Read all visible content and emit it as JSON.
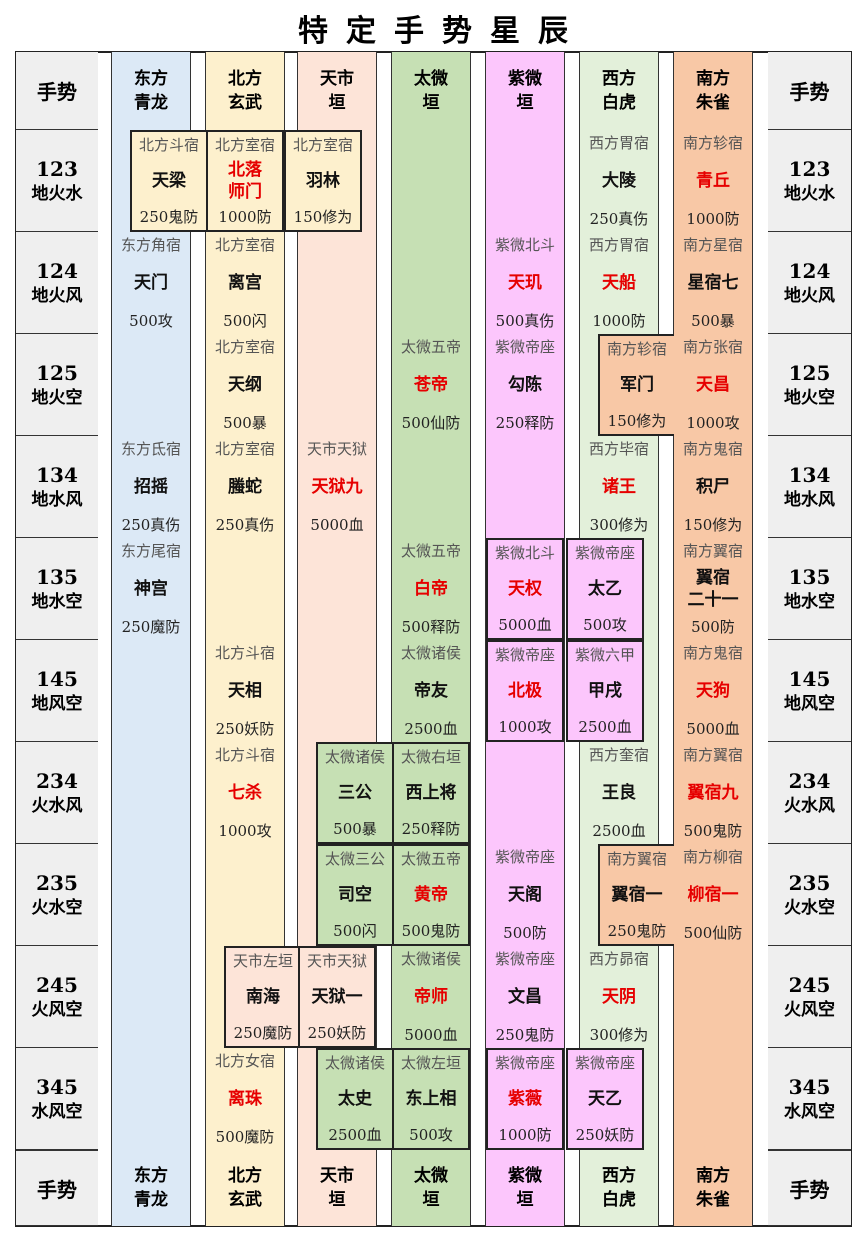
{
  "title": "特定手势星辰",
  "header": {
    "left": "手势",
    "right": "手势",
    "columns": [
      [
        "东方",
        "青龙"
      ],
      [
        "北方",
        "玄武"
      ],
      [
        "天市",
        "垣"
      ],
      [
        "太微",
        "垣"
      ],
      [
        "紫微",
        "垣"
      ],
      [
        "西方",
        "白虎"
      ],
      [
        "南方",
        "朱雀"
      ]
    ]
  },
  "footer": {
    "left": "手势",
    "right": "手势",
    "columns": [
      [
        "东方",
        "青龙"
      ],
      [
        "北方",
        "玄武"
      ],
      [
        "天市",
        "垣"
      ],
      [
        "太微",
        "垣"
      ],
      [
        "紫微",
        "垣"
      ],
      [
        "西方",
        "白虎"
      ],
      [
        "南方",
        "朱雀"
      ]
    ]
  },
  "rows": [
    {
      "code": "123",
      "name": "地火水",
      "cells": [
        {
          "group": "北方斗宿",
          "name": "天梁",
          "stat": "250鬼防"
        },
        {
          "group": "北方室宿",
          "name": [
            "北落",
            "师门"
          ],
          "stat": "1000防",
          "color": "red"
        },
        {
          "group": "北方室宿",
          "name": "羽林",
          "stat": "150修为"
        },
        null,
        null,
        {
          "group": "西方胃宿",
          "name": "大陵",
          "stat": "250真伤"
        },
        {
          "group": "南方轸宿",
          "name": "青丘",
          "stat": "1000防",
          "color": "red"
        }
      ]
    },
    {
      "code": "124",
      "name": "地火风",
      "cells": [
        {
          "group": "东方角宿",
          "name": "天门",
          "stat": "500攻"
        },
        {
          "group": "北方室宿",
          "name": "离宫",
          "stat": "500闪"
        },
        null,
        null,
        {
          "group": "紫微北斗",
          "name": "天玑",
          "stat": "500真伤",
          "color": "red"
        },
        {
          "group": "西方胃宿",
          "name": "天船",
          "stat": "1000防",
          "color": "red"
        },
        {
          "group": "南方星宿",
          "name": "星宿七",
          "stat": "500暴"
        }
      ]
    },
    {
      "code": "125",
      "name": "地火空",
      "cells": [
        null,
        {
          "group": "北方室宿",
          "name": "天纲",
          "stat": "500暴"
        },
        null,
        {
          "group": "太微五帝",
          "name": "苍帝",
          "stat": "500仙防",
          "color": "red"
        },
        {
          "group": "紫微帝座",
          "name": "勾陈",
          "stat": "250释防"
        },
        {
          "group": "南方轸宿",
          "name": "军门",
          "stat": "150修为"
        },
        {
          "group": "南方张宿",
          "name": "天昌",
          "stat": "1000攻",
          "color": "red"
        }
      ]
    },
    {
      "code": "134",
      "name": "地水风",
      "cells": [
        {
          "group": "东方氐宿",
          "name": "招摇",
          "stat": "250真伤"
        },
        {
          "group": "北方室宿",
          "name": "螣蛇",
          "stat": "250真伤"
        },
        {
          "group": "天市天狱",
          "name": "天狱九",
          "stat": "5000血",
          "color": "red"
        },
        null,
        null,
        {
          "group": "西方毕宿",
          "name": "诸王",
          "stat": "300修为",
          "color": "red"
        },
        {
          "group": "南方鬼宿",
          "name": "积尸",
          "stat": "150修为"
        }
      ]
    },
    {
      "code": "135",
      "name": "地水空",
      "cells": [
        {
          "group": "东方尾宿",
          "name": "神宫",
          "stat": "250魔防"
        },
        null,
        null,
        {
          "group": "太微五帝",
          "name": "白帝",
          "stat": "500释防",
          "color": "red"
        },
        {
          "group": "紫微北斗",
          "name": "天权",
          "stat": "5000血",
          "color": "red"
        },
        {
          "group": "紫微帝座",
          "name": "太乙",
          "stat": "500攻"
        },
        {
          "group": "南方翼宿",
          "name": [
            "翼宿",
            "二十一"
          ],
          "stat": "500防"
        }
      ]
    },
    {
      "code": "145",
      "name": "地风空",
      "cells": [
        null,
        {
          "group": "北方斗宿",
          "name": "天相",
          "stat": "250妖防"
        },
        null,
        {
          "group": "太微诸侯",
          "name": "帝友",
          "stat": "2500血"
        },
        {
          "group": "紫微帝座",
          "name": "北极",
          "stat": "1000攻",
          "color": "red"
        },
        {
          "group": "紫微六甲",
          "name": "甲戌",
          "stat": "2500血"
        },
        {
          "group": "南方鬼宿",
          "name": "天狗",
          "stat": "5000血",
          "color": "red"
        }
      ]
    },
    {
      "code": "234",
      "name": "火水风",
      "cells": [
        null,
        {
          "group": "北方斗宿",
          "name": "七杀",
          "stat": "1000攻",
          "color": "red"
        },
        {
          "group": "太微诸侯",
          "name": "三公",
          "stat": "500暴"
        },
        {
          "group": "太微右垣",
          "name": "西上将",
          "stat": "250释防"
        },
        null,
        {
          "group": "西方奎宿",
          "name": "王良",
          "stat": "2500血"
        },
        {
          "group": "南方翼宿",
          "name": "翼宿九",
          "stat": "500鬼防",
          "color": "red"
        }
      ]
    },
    {
      "code": "235",
      "name": "火水空",
      "cells": [
        null,
        null,
        {
          "group": "太微三公",
          "name": "司空",
          "stat": "500闪"
        },
        {
          "group": "太微五帝",
          "name": "黄帝",
          "stat": "500鬼防",
          "color": "red"
        },
        {
          "group": "紫微帝座",
          "name": "天阁",
          "stat": "500防"
        },
        {
          "group": "南方翼宿",
          "name": "翼宿一",
          "stat": "250鬼防"
        },
        {
          "group": "南方柳宿",
          "name": "柳宿一",
          "stat": "500仙防",
          "color": "red"
        }
      ]
    },
    {
      "code": "245",
      "name": "火风空",
      "cells": [
        null,
        {
          "group": "天市左垣",
          "name": "南海",
          "stat": "250魔防"
        },
        {
          "group": "天市天狱",
          "name": "天狱一",
          "stat": "250妖防"
        },
        {
          "group": "太微诸侯",
          "name": "帝师",
          "stat": "5000血",
          "color": "red"
        },
        {
          "group": "紫微帝座",
          "name": "文昌",
          "stat": "250鬼防"
        },
        {
          "group": "西方昴宿",
          "name": "天阴",
          "stat": "300修为",
          "color": "red"
        },
        null
      ]
    },
    {
      "code": "345",
      "name": "水风空",
      "cells": [
        null,
        {
          "group": "北方女宿",
          "name": "离珠",
          "stat": "500魔防",
          "color": "red"
        },
        {
          "group": "太微诸侯",
          "name": "太史",
          "stat": "2500血"
        },
        {
          "group": "太微左垣",
          "name": "东上相",
          "stat": "500攻"
        },
        {
          "group": "紫微帝座",
          "name": "紫薇",
          "stat": "1000防",
          "color": "red"
        },
        {
          "group": "紫微帝座",
          "name": "天乙",
          "stat": "250妖防"
        },
        null
      ]
    }
  ]
}
